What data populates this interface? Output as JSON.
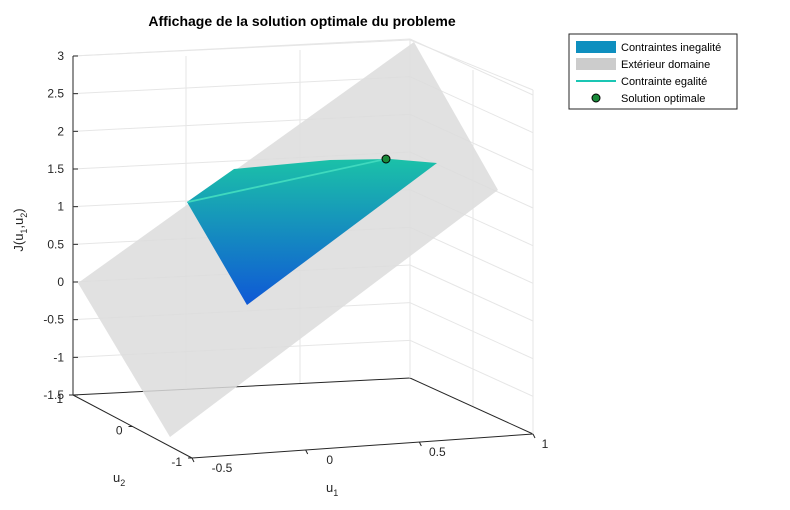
{
  "chart_data": {
    "type": "surface3d",
    "title": "Affichage de la solution optimale du probleme",
    "xlabel": {
      "base": "u",
      "sub": "1"
    },
    "ylabel": {
      "base": "u",
      "sub": "2"
    },
    "zlabel": {
      "parts": [
        "J(u",
        "1",
        ",u",
        "2",
        ")"
      ]
    },
    "xlim": [
      -0.5,
      1
    ],
    "ylim": [
      -1,
      1
    ],
    "zlim": [
      -1.5,
      3
    ],
    "x_ticks": [
      "-0.5",
      "0",
      "0.5",
      "1"
    ],
    "y_ticks": [
      "-1",
      "0",
      "1"
    ],
    "z_ticks": [
      "-1.5",
      "-1",
      "-0.5",
      "0",
      "0.5",
      "1",
      "1.5",
      "2",
      "2.5",
      "3"
    ],
    "grid": true,
    "legend_position": "top-right outside",
    "legend": [
      {
        "label": "Contraintes inegalité",
        "kind": "patch",
        "color": "#0e8fbf"
      },
      {
        "label": "Extérieur domaine",
        "kind": "patch",
        "color": "#cccccc"
      },
      {
        "label": "Contrainte egalité",
        "kind": "line",
        "color": "#1ac6b4"
      },
      {
        "label": "Solution optimale",
        "kind": "marker",
        "color": "#1a8a3a"
      }
    ],
    "colors": {
      "gradient_top": "#1bc1a8",
      "gradient_bottom": "#0f58d6",
      "exterior": "#dcdcdc",
      "equality_line": "#3fd9be",
      "optimum": "#1a8a3a"
    },
    "optimal_solution": {
      "J": 1.6
    }
  }
}
